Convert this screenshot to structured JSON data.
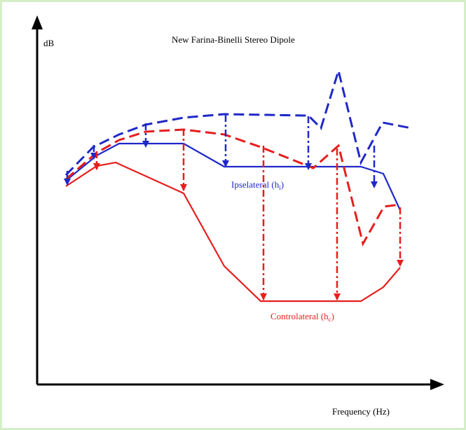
{
  "title": "New Farina-Binelli Stereo Dipole",
  "y_axis_label": "dB",
  "x_axis_label": "Frequency (Hz)",
  "ipsilateral_label": {
    "main": "Ipselateral (h",
    "sub": "i",
    "close": ")"
  },
  "contralateral_label": {
    "main": "Controlateral (h",
    "sub": "c",
    "close": ")"
  },
  "colors": {
    "ipsilateral": "#1e28c8",
    "contralateral": "#e61e1e",
    "axes": "#000000",
    "frame": "#d4eec8"
  }
}
